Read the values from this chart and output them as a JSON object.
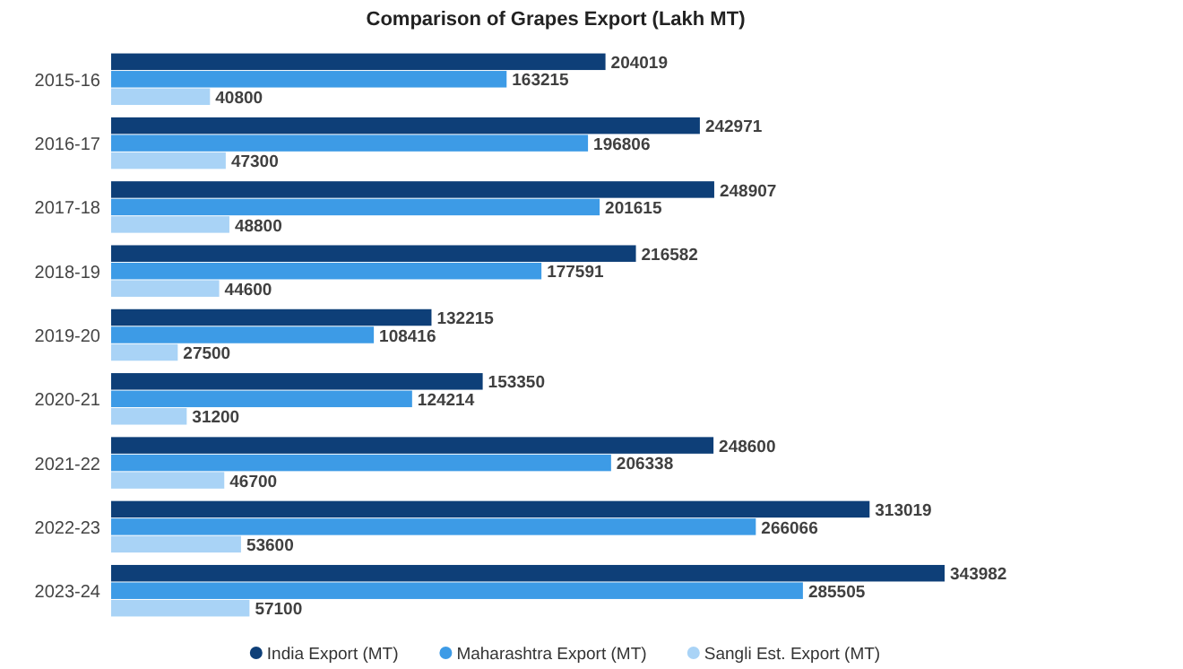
{
  "chart_data": {
    "type": "bar",
    "orientation": "horizontal",
    "title": "Comparison of Grapes Export (Lakh MT)",
    "categories": [
      "2015-16",
      "2016-17",
      "2017-18",
      "2018-19",
      "2019-20",
      "2020-21",
      "2021-22",
      "2022-23",
      "2023-24"
    ],
    "series": [
      {
        "name": "India Export (MT)",
        "color": "#0e3f78",
        "values": [
          204019,
          242971,
          248907,
          216582,
          132215,
          153350,
          248600,
          313019,
          343982
        ]
      },
      {
        "name": "Maharashtra Export (MT)",
        "color": "#3d9be6",
        "values": [
          163215,
          196806,
          201615,
          177591,
          108416,
          124214,
          206338,
          266066,
          285505
        ]
      },
      {
        "name": "Sangli Est. Export (MT)",
        "color": "#a9d3f6",
        "values": [
          40800,
          47300,
          48800,
          44600,
          27500,
          31200,
          46700,
          53600,
          57100
        ]
      }
    ],
    "data_labels": true,
    "legend": "bottom"
  }
}
